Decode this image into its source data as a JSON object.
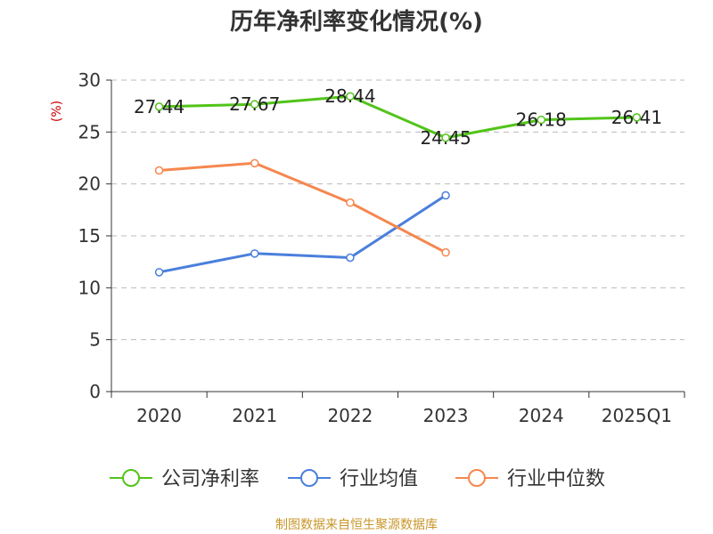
{
  "chart_data": {
    "type": "line",
    "title": "历年净利率变化情况(%)",
    "unit_label": "(%)",
    "categories": [
      "2020",
      "2021",
      "2022",
      "2023",
      "2024",
      "2025Q1"
    ],
    "ylim": [
      0,
      30
    ],
    "yticks": [
      0,
      5,
      10,
      15,
      20,
      25,
      30
    ],
    "grid": true,
    "legend_position": "bottom",
    "series": [
      {
        "name": "公司净利率",
        "color": "#52c41a",
        "values": [
          27.44,
          27.67,
          28.44,
          24.45,
          26.18,
          26.41
        ],
        "labels": [
          "27.44",
          "27.67",
          "28.44",
          "24.45",
          "26.18",
          "26.41"
        ]
      },
      {
        "name": "行业均值",
        "color": "#4a7fdc",
        "values": [
          11.5,
          13.3,
          12.9,
          18.9,
          null,
          null
        ]
      },
      {
        "name": "行业中位数",
        "color": "#f5874f",
        "values": [
          21.3,
          22.0,
          18.2,
          13.4,
          null,
          null
        ]
      }
    ]
  },
  "source": "制图数据来自恒生聚源数据库"
}
